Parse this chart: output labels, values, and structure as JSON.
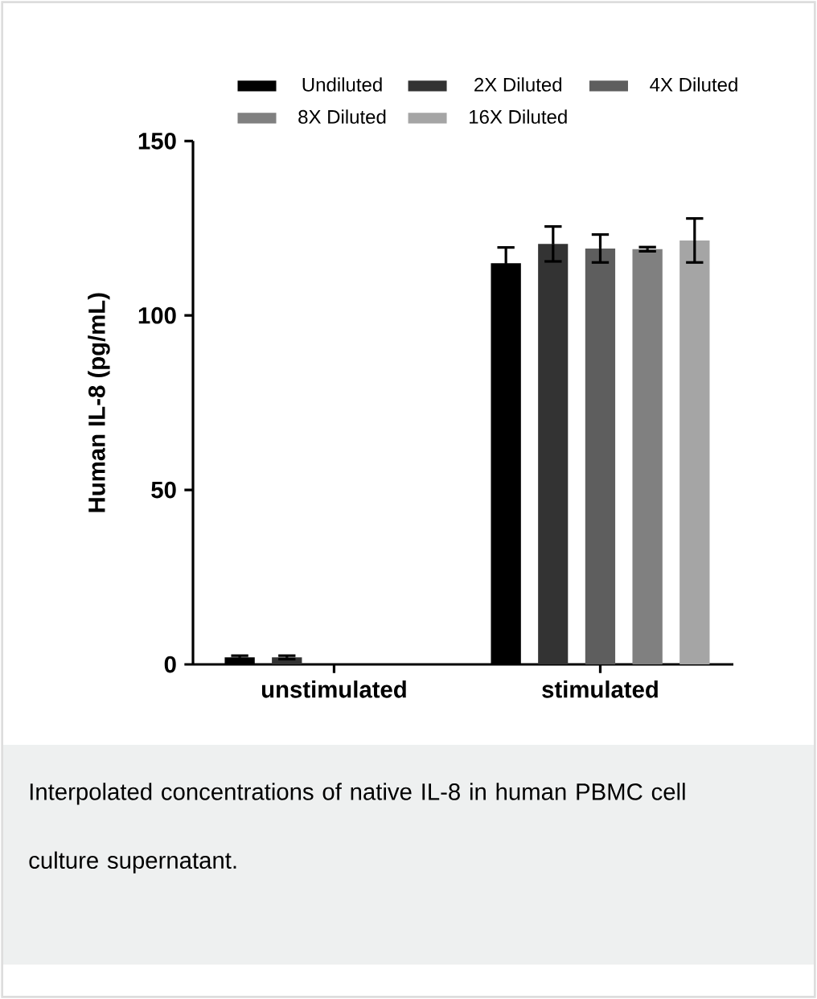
{
  "chart_data": {
    "type": "bar",
    "ylabel": "Human IL-8 (pg/mL)",
    "categories": [
      "unstimulated",
      "stimulated"
    ],
    "ylim": [
      0,
      150
    ],
    "yticks": [
      0,
      50,
      100,
      150
    ],
    "grid": false,
    "legend": "top",
    "series": [
      {
        "name": "Undiluted",
        "color": "#000000",
        "values": [
          2,
          115
        ],
        "errors": [
          0.5,
          4.5
        ]
      },
      {
        "name": "2X Diluted",
        "color": "#333333",
        "values": [
          2,
          120.5
        ],
        "errors": [
          0.5,
          5
        ]
      },
      {
        "name": "4X Diluted",
        "color": "#5e5e5e",
        "values": [
          null,
          119.2
        ],
        "errors": [
          null,
          4
        ]
      },
      {
        "name": "8X Diluted",
        "color": "#808080",
        "values": [
          null,
          119
        ],
        "errors": [
          null,
          0.6
        ]
      },
      {
        "name": "16X Diluted",
        "color": "#a5a5a5",
        "values": [
          null,
          121.5
        ],
        "errors": [
          null,
          6.3
        ]
      }
    ],
    "annotations": [
      "Interpolated concentrations of native IL-8 in human PBMC cell culture supernatant."
    ]
  }
}
